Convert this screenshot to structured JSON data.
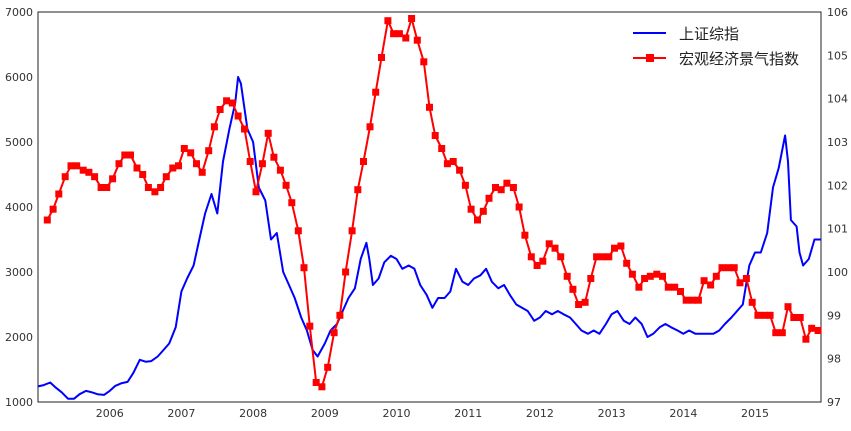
{
  "chart_data": {
    "type": "line",
    "title": "",
    "xlabel": "",
    "ylabel_left": "",
    "ylabel_right": "",
    "x_range": [
      2005.0,
      2015.92
    ],
    "x_ticks": [
      {
        "value": 2006,
        "label": "2006"
      },
      {
        "value": 2007,
        "label": "2007"
      },
      {
        "value": 2008,
        "label": "2008"
      },
      {
        "value": 2009,
        "label": "2009"
      },
      {
        "value": 2010,
        "label": "2010"
      },
      {
        "value": 2011,
        "label": "2011"
      },
      {
        "value": 2012,
        "label": "2012"
      },
      {
        "value": 2013,
        "label": "2013"
      },
      {
        "value": 2014,
        "label": "2014"
      },
      {
        "value": 2015,
        "label": "2015"
      }
    ],
    "y_left": {
      "range": [
        1000,
        7000
      ],
      "ticks": [
        "1000",
        "2000",
        "3000",
        "4000",
        "5000",
        "6000",
        "7000"
      ]
    },
    "y_right": {
      "range": [
        97,
        106
      ],
      "ticks": [
        "97",
        "98",
        "99",
        "100",
        "101",
        "102",
        "103",
        "104",
        "105",
        "106"
      ]
    },
    "grid": false,
    "legend": {
      "position": "top-right",
      "entries": [
        {
          "label": "上证综指",
          "color": "#0000ff",
          "marker": "none"
        },
        {
          "label": "宏观经济景气指数",
          "color": "#ff0000",
          "marker": "square"
        }
      ]
    },
    "series": [
      {
        "name": "上证综指",
        "axis": "left",
        "color": "#0000ff",
        "points": [
          [
            2005.0,
            1240
          ],
          [
            2005.08,
            1260
          ],
          [
            2005.17,
            1300
          ],
          [
            2005.25,
            1220
          ],
          [
            2005.33,
            1150
          ],
          [
            2005.42,
            1050
          ],
          [
            2005.5,
            1050
          ],
          [
            2005.58,
            1120
          ],
          [
            2005.67,
            1170
          ],
          [
            2005.75,
            1150
          ],
          [
            2005.83,
            1120
          ],
          [
            2005.92,
            1110
          ],
          [
            2006.0,
            1170
          ],
          [
            2006.08,
            1250
          ],
          [
            2006.17,
            1290
          ],
          [
            2006.25,
            1310
          ],
          [
            2006.33,
            1450
          ],
          [
            2006.42,
            1650
          ],
          [
            2006.5,
            1620
          ],
          [
            2006.58,
            1630
          ],
          [
            2006.67,
            1700
          ],
          [
            2006.75,
            1800
          ],
          [
            2006.83,
            1900
          ],
          [
            2006.92,
            2150
          ],
          [
            2007.0,
            2700
          ],
          [
            2007.08,
            2900
          ],
          [
            2007.17,
            3100
          ],
          [
            2007.25,
            3500
          ],
          [
            2007.33,
            3900
          ],
          [
            2007.42,
            4200
          ],
          [
            2007.5,
            3900
          ],
          [
            2007.58,
            4700
          ],
          [
            2007.67,
            5200
          ],
          [
            2007.75,
            5600
          ],
          [
            2007.79,
            6000
          ],
          [
            2007.83,
            5900
          ],
          [
            2007.92,
            5200
          ],
          [
            2008.0,
            5000
          ],
          [
            2008.08,
            4300
          ],
          [
            2008.17,
            4100
          ],
          [
            2008.25,
            3500
          ],
          [
            2008.33,
            3600
          ],
          [
            2008.42,
            3000
          ],
          [
            2008.5,
            2800
          ],
          [
            2008.58,
            2600
          ],
          [
            2008.67,
            2300
          ],
          [
            2008.75,
            2100
          ],
          [
            2008.83,
            1800
          ],
          [
            2008.9,
            1700
          ],
          [
            2009.0,
            1900
          ],
          [
            2009.08,
            2100
          ],
          [
            2009.17,
            2200
          ],
          [
            2009.25,
            2400
          ],
          [
            2009.33,
            2600
          ],
          [
            2009.42,
            2750
          ],
          [
            2009.5,
            3200
          ],
          [
            2009.58,
            3450
          ],
          [
            2009.62,
            3200
          ],
          [
            2009.67,
            2800
          ],
          [
            2009.75,
            2900
          ],
          [
            2009.83,
            3150
          ],
          [
            2009.92,
            3250
          ],
          [
            2010.0,
            3200
          ],
          [
            2010.08,
            3050
          ],
          [
            2010.17,
            3100
          ],
          [
            2010.25,
            3050
          ],
          [
            2010.33,
            2800
          ],
          [
            2010.42,
            2650
          ],
          [
            2010.5,
            2450
          ],
          [
            2010.58,
            2600
          ],
          [
            2010.67,
            2600
          ],
          [
            2010.75,
            2700
          ],
          [
            2010.83,
            3050
          ],
          [
            2010.92,
            2850
          ],
          [
            2011.0,
            2800
          ],
          [
            2011.08,
            2900
          ],
          [
            2011.17,
            2950
          ],
          [
            2011.25,
            3050
          ],
          [
            2011.33,
            2850
          ],
          [
            2011.42,
            2750
          ],
          [
            2011.5,
            2800
          ],
          [
            2011.58,
            2650
          ],
          [
            2011.67,
            2500
          ],
          [
            2011.75,
            2450
          ],
          [
            2011.83,
            2400
          ],
          [
            2011.92,
            2250
          ],
          [
            2012.0,
            2300
          ],
          [
            2012.08,
            2400
          ],
          [
            2012.17,
            2350
          ],
          [
            2012.25,
            2400
          ],
          [
            2012.33,
            2350
          ],
          [
            2012.42,
            2300
          ],
          [
            2012.5,
            2200
          ],
          [
            2012.58,
            2100
          ],
          [
            2012.67,
            2050
          ],
          [
            2012.75,
            2100
          ],
          [
            2012.83,
            2050
          ],
          [
            2012.92,
            2200
          ],
          [
            2013.0,
            2350
          ],
          [
            2013.08,
            2400
          ],
          [
            2013.17,
            2250
          ],
          [
            2013.25,
            2200
          ],
          [
            2013.33,
            2300
          ],
          [
            2013.42,
            2200
          ],
          [
            2013.5,
            2000
          ],
          [
            2013.58,
            2050
          ],
          [
            2013.67,
            2150
          ],
          [
            2013.75,
            2200
          ],
          [
            2013.83,
            2150
          ],
          [
            2013.92,
            2100
          ],
          [
            2014.0,
            2050
          ],
          [
            2014.08,
            2100
          ],
          [
            2014.17,
            2050
          ],
          [
            2014.25,
            2050
          ],
          [
            2014.33,
            2050
          ],
          [
            2014.42,
            2050
          ],
          [
            2014.5,
            2100
          ],
          [
            2014.58,
            2200
          ],
          [
            2014.67,
            2300
          ],
          [
            2014.75,
            2400
          ],
          [
            2014.83,
            2500
          ],
          [
            2014.92,
            3100
          ],
          [
            2015.0,
            3300
          ],
          [
            2015.08,
            3300
          ],
          [
            2015.17,
            3600
          ],
          [
            2015.25,
            4300
          ],
          [
            2015.33,
            4600
          ],
          [
            2015.42,
            5100
          ],
          [
            2015.46,
            4700
          ],
          [
            2015.5,
            3800
          ],
          [
            2015.58,
            3700
          ],
          [
            2015.62,
            3300
          ],
          [
            2015.67,
            3100
          ],
          [
            2015.75,
            3200
          ],
          [
            2015.83,
            3500
          ],
          [
            2015.92,
            3500
          ]
        ]
      },
      {
        "name": "宏观经济景气指数",
        "axis": "right",
        "color": "#ff0000",
        "points": [
          [
            2005.13,
            101.2
          ],
          [
            2005.21,
            101.45
          ],
          [
            2005.29,
            101.8
          ],
          [
            2005.38,
            102.2
          ],
          [
            2005.46,
            102.45
          ],
          [
            2005.54,
            102.45
          ],
          [
            2005.63,
            102.35
          ],
          [
            2005.71,
            102.3
          ],
          [
            2005.79,
            102.2
          ],
          [
            2005.88,
            101.95
          ],
          [
            2005.96,
            101.95
          ],
          [
            2006.04,
            102.15
          ],
          [
            2006.13,
            102.5
          ],
          [
            2006.21,
            102.7
          ],
          [
            2006.29,
            102.7
          ],
          [
            2006.38,
            102.4
          ],
          [
            2006.46,
            102.25
          ],
          [
            2006.54,
            101.95
          ],
          [
            2006.63,
            101.85
          ],
          [
            2006.71,
            101.95
          ],
          [
            2006.79,
            102.2
          ],
          [
            2006.88,
            102.4
          ],
          [
            2006.96,
            102.45
          ],
          [
            2007.04,
            102.85
          ],
          [
            2007.13,
            102.75
          ],
          [
            2007.21,
            102.5
          ],
          [
            2007.29,
            102.3
          ],
          [
            2007.38,
            102.8
          ],
          [
            2007.46,
            103.35
          ],
          [
            2007.54,
            103.75
          ],
          [
            2007.63,
            103.95
          ],
          [
            2007.71,
            103.9
          ],
          [
            2007.79,
            103.6
          ],
          [
            2007.88,
            103.3
          ],
          [
            2007.96,
            102.55
          ],
          [
            2008.04,
            101.85
          ],
          [
            2008.13,
            102.5
          ],
          [
            2008.21,
            103.2
          ],
          [
            2008.29,
            102.65
          ],
          [
            2008.38,
            102.35
          ],
          [
            2008.46,
            102.0
          ],
          [
            2008.54,
            101.6
          ],
          [
            2008.63,
            100.95
          ],
          [
            2008.71,
            100.1
          ],
          [
            2008.79,
            98.75
          ],
          [
            2008.88,
            97.45
          ],
          [
            2008.96,
            97.35
          ],
          [
            2009.04,
            97.8
          ],
          [
            2009.13,
            98.6
          ],
          [
            2009.21,
            99.0
          ],
          [
            2009.29,
            100.0
          ],
          [
            2009.38,
            100.95
          ],
          [
            2009.46,
            101.9
          ],
          [
            2009.54,
            102.55
          ],
          [
            2009.63,
            103.35
          ],
          [
            2009.71,
            104.15
          ],
          [
            2009.79,
            104.95
          ],
          [
            2009.88,
            105.8
          ],
          [
            2009.96,
            105.5
          ],
          [
            2010.04,
            105.5
          ],
          [
            2010.13,
            105.4
          ],
          [
            2010.21,
            105.85
          ],
          [
            2010.29,
            105.35
          ],
          [
            2010.38,
            104.85
          ],
          [
            2010.46,
            103.8
          ],
          [
            2010.54,
            103.15
          ],
          [
            2010.63,
            102.85
          ],
          [
            2010.71,
            102.5
          ],
          [
            2010.79,
            102.55
          ],
          [
            2010.88,
            102.35
          ],
          [
            2010.96,
            102.0
          ],
          [
            2011.04,
            101.45
          ],
          [
            2011.13,
            101.2
          ],
          [
            2011.21,
            101.4
          ],
          [
            2011.29,
            101.7
          ],
          [
            2011.38,
            101.95
          ],
          [
            2011.46,
            101.9
          ],
          [
            2011.54,
            102.05
          ],
          [
            2011.63,
            101.95
          ],
          [
            2011.71,
            101.5
          ],
          [
            2011.79,
            100.85
          ],
          [
            2011.88,
            100.35
          ],
          [
            2011.96,
            100.15
          ],
          [
            2012.04,
            100.25
          ],
          [
            2012.13,
            100.65
          ],
          [
            2012.21,
            100.55
          ],
          [
            2012.29,
            100.35
          ],
          [
            2012.38,
            99.9
          ],
          [
            2012.46,
            99.6
          ],
          [
            2012.54,
            99.25
          ],
          [
            2012.63,
            99.3
          ],
          [
            2012.71,
            99.85
          ],
          [
            2012.79,
            100.35
          ],
          [
            2012.88,
            100.35
          ],
          [
            2012.96,
            100.35
          ],
          [
            2013.04,
            100.55
          ],
          [
            2013.13,
            100.6
          ],
          [
            2013.21,
            100.2
          ],
          [
            2013.29,
            99.95
          ],
          [
            2013.38,
            99.65
          ],
          [
            2013.46,
            99.85
          ],
          [
            2013.54,
            99.9
          ],
          [
            2013.63,
            99.95
          ],
          [
            2013.71,
            99.9
          ],
          [
            2013.79,
            99.65
          ],
          [
            2013.88,
            99.65
          ],
          [
            2013.96,
            99.55
          ],
          [
            2014.04,
            99.35
          ],
          [
            2014.13,
            99.35
          ],
          [
            2014.21,
            99.35
          ],
          [
            2014.29,
            99.8
          ],
          [
            2014.38,
            99.7
          ],
          [
            2014.46,
            99.9
          ],
          [
            2014.54,
            100.1
          ],
          [
            2014.63,
            100.1
          ],
          [
            2014.71,
            100.1
          ],
          [
            2014.79,
            99.75
          ],
          [
            2014.88,
            99.85
          ],
          [
            2014.96,
            99.3
          ],
          [
            2015.04,
            99.0
          ],
          [
            2015.13,
            99.0
          ],
          [
            2015.21,
            99.0
          ],
          [
            2015.29,
            98.6
          ],
          [
            2015.38,
            98.6
          ],
          [
            2015.46,
            99.2
          ],
          [
            2015.54,
            98.95
          ],
          [
            2015.63,
            98.95
          ],
          [
            2015.71,
            98.45
          ],
          [
            2015.79,
            98.7
          ],
          [
            2015.88,
            98.65
          ]
        ]
      }
    ]
  }
}
